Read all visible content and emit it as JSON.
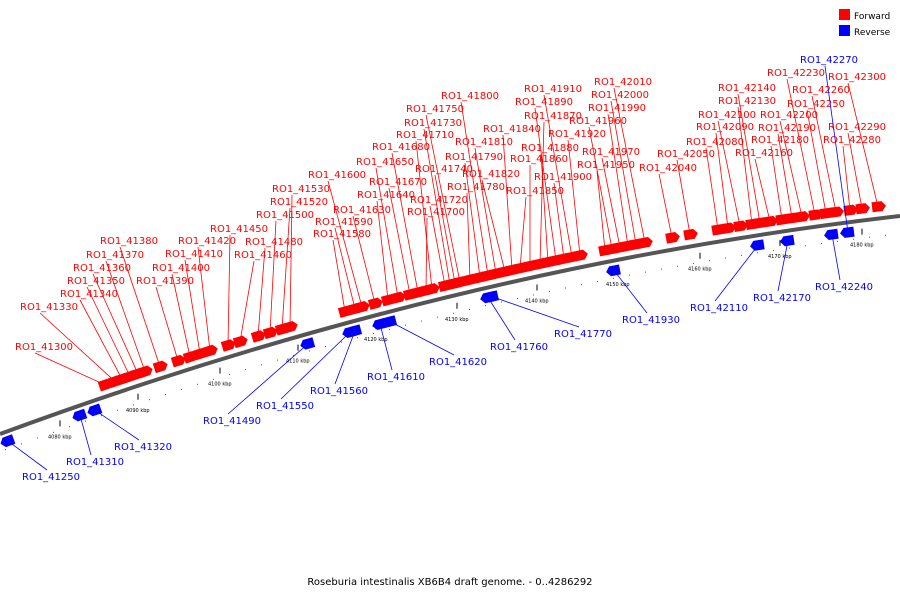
{
  "legend": {
    "forward": {
      "label": "Forward",
      "color": "#ff0000"
    },
    "reverse": {
      "label": "Reverse",
      "color": "#0000ff"
    }
  },
  "caption": "Roseburia intestinalis XB6B4 draft genome. - 0..4286292",
  "ticks": [
    "4080 kbp",
    "4090 kbp",
    "4100 kbp",
    "4110 kbp",
    "4120 kbp",
    "4130 kbp",
    "4140 kbp",
    "4150 kbp",
    "4160 kbp",
    "4170 kbp",
    "4180 kbp"
  ],
  "forward_genes": [
    "RO1_41300",
    "RO1_41330",
    "RO1_41340",
    "RO1_41350",
    "RO1_41360",
    "RO1_41370",
    "RO1_41380",
    "RO1_41390",
    "RO1_41400",
    "RO1_41410",
    "RO1_41420",
    "RO1_41450",
    "RO1_41460",
    "RO1_41480",
    "RO1_41500",
    "RO1_41520",
    "RO1_41530",
    "RO1_41580",
    "RO1_41590",
    "RO1_41600",
    "RO1_41630",
    "RO1_41640",
    "RO1_41650",
    "RO1_41670",
    "RO1_41680",
    "RO1_41700",
    "RO1_41710",
    "RO1_41720",
    "RO1_41730",
    "RO1_41740",
    "RO1_41750",
    "RO1_41780",
    "RO1_41790",
    "RO1_41800",
    "RO1_41810",
    "RO1_41820",
    "RO1_41840",
    "RO1_41850",
    "RO1_41860",
    "RO1_41870",
    "RO1_41880",
    "RO1_41890",
    "RO1_41900",
    "RO1_41910",
    "RO1_41920",
    "RO1_41950",
    "RO1_41960",
    "RO1_41970",
    "RO1_41990",
    "RO1_42000",
    "RO1_42010",
    "RO1_42040",
    "RO1_42050",
    "RO1_42080",
    "RO1_42090",
    "RO1_42100",
    "RO1_42130",
    "RO1_42140",
    "RO1_42160",
    "RO1_42180",
    "RO1_42190",
    "RO1_42200",
    "RO1_42230",
    "RO1_42250",
    "RO1_42260",
    "RO1_42280",
    "RO1_42290",
    "RO1_42300"
  ],
  "reverse_genes": [
    "RO1_41250",
    "RO1_41310",
    "RO1_41320",
    "RO1_41490",
    "RO1_41550",
    "RO1_41560",
    "RO1_41610",
    "RO1_41620",
    "RO1_41760",
    "RO1_41770",
    "RO1_41930",
    "RO1_42110",
    "RO1_42170",
    "RO1_42240",
    "RO1_42270"
  ]
}
